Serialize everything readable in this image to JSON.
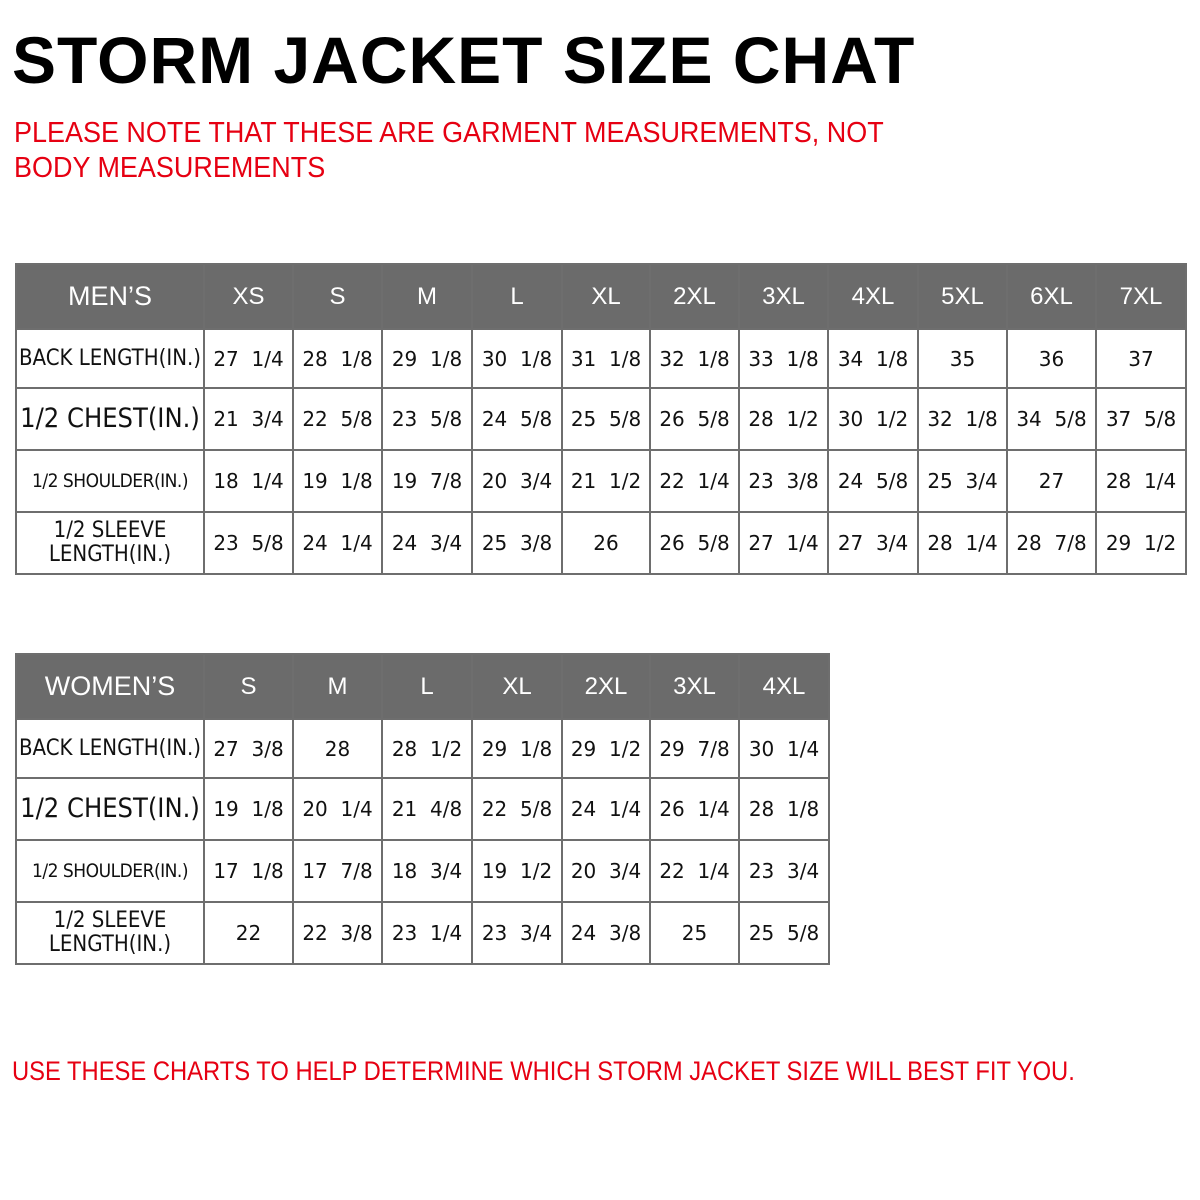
{
  "title": "STORM JACKET SIZE CHAT",
  "note": "PLEASE NOTE THAT THESE ARE GARMENT MEASUREMENTS, NOT BODY MEASUREMENTS",
  "colors": {
    "header_bg": "#6b6b6b",
    "accent_red": "#e60012"
  },
  "mens": {
    "label": "MEN’S",
    "sizes": [
      "XS",
      "S",
      "M",
      "L",
      "XL",
      "2XL",
      "3XL",
      "4XL",
      "5XL",
      "6XL",
      "7XL"
    ],
    "rows": [
      {
        "label": "BACK LENGTH(IN.)",
        "values": [
          "27  1/4",
          "28  1/8",
          "29  1/8",
          "30  1/8",
          "31  1/8",
          "32  1/8",
          "33  1/8",
          "34  1/8",
          "35",
          "36",
          "37"
        ]
      },
      {
        "label": "1/2  CHEST(IN.)",
        "values": [
          "21  3/4",
          "22  5/8",
          "23  5/8",
          "24  5/8",
          "25  5/8",
          "26  5/8",
          "28  1/2",
          "30  1/2",
          "32  1/8",
          "34  5/8",
          "37  5/8"
        ]
      },
      {
        "label": "1/2  SHOULDER(IN.)",
        "values": [
          "18  1/4",
          "19  1/8",
          "19  7/8",
          "20  3/4",
          "21  1/2",
          "22  1/4",
          "23  3/8",
          "24  5/8",
          "25  3/4",
          "27",
          "28  1/4"
        ]
      },
      {
        "label": "1/2  SLEEVE LENGTH(IN.)",
        "values": [
          "23  5/8",
          "24  1/4",
          "24  3/4",
          "25  3/8",
          "26",
          "26  5/8",
          "27  1/4",
          "27  3/4",
          "28  1/4",
          "28  7/8",
          "29  1/2"
        ]
      }
    ]
  },
  "womens": {
    "label": "WOMEN’S",
    "sizes": [
      "S",
      "M",
      "L",
      "XL",
      "2XL",
      "3XL",
      "4XL"
    ],
    "rows": [
      {
        "label": "BACK LENGTH(IN.)",
        "values": [
          "27  3/8",
          "28",
          "28  1/2",
          "29  1/8",
          "29  1/2",
          "29  7/8",
          "30  1/4"
        ]
      },
      {
        "label": "1/2  CHEST(IN.)",
        "values": [
          "19  1/8",
          "20  1/4",
          "21  4/8",
          "22  5/8",
          "24  1/4",
          "26  1/4",
          "28  1/8"
        ]
      },
      {
        "label": "1/2  SHOULDER(IN.)",
        "values": [
          "17  1/8",
          "17  7/8",
          "18  3/4",
          "19  1/2",
          "20  3/4",
          "22  1/4",
          "23  3/4"
        ]
      },
      {
        "label": "1/2  SLEEVE LENGTH(IN.)",
        "values": [
          "22",
          "22  3/8",
          "23  1/4",
          "23  3/4",
          "24  3/8",
          "25",
          "25  5/8"
        ]
      }
    ]
  },
  "footer": "USE THESE CHARTS TO HELP DETERMINE WHICH STORM JACKET  SIZE WILL BEST FIT YOU."
}
